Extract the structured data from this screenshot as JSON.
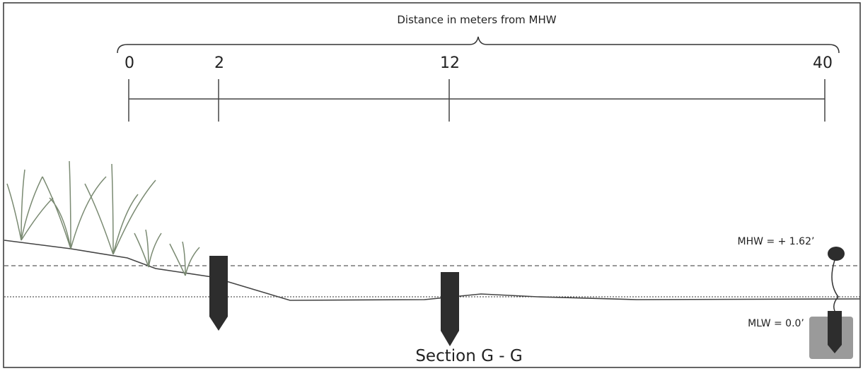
{
  "scale": {
    "title": "Distance in meters from MHW",
    "ticks": [
      "0",
      "2",
      "12",
      "40"
    ]
  },
  "levels": {
    "mhw": "MHW = + 1.62’",
    "mlw": "MLW = 0.0’"
  },
  "caption": "Section G - G"
}
